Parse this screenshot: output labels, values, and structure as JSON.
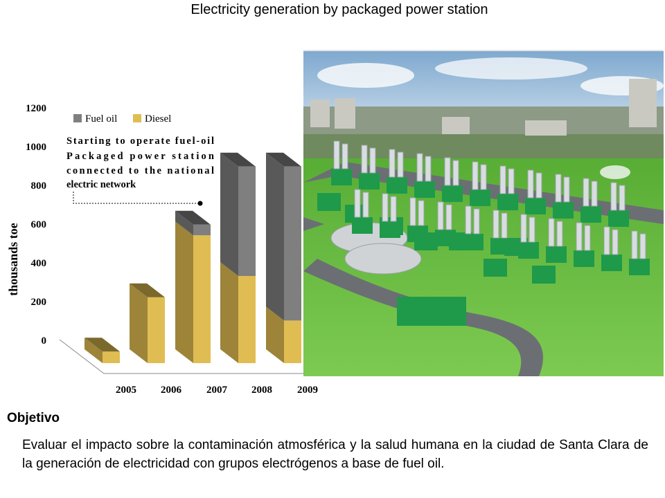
{
  "page": {
    "title": "Electricity generation by packaged power station"
  },
  "chart_data": {
    "type": "bar",
    "stacked": true,
    "three_d": true,
    "categories": [
      "2005",
      "2006",
      "2007",
      "2008",
      "2009"
    ],
    "series": [
      {
        "name": "Diesel",
        "values": [
          60,
          340,
          660,
          450,
          220
        ],
        "color": "#e0bd52"
      },
      {
        "name": "Fuel oil",
        "values": [
          0,
          0,
          55,
          565,
          795
        ],
        "color": "#7f7f7f"
      }
    ],
    "ylabel": "thousands  toe",
    "ylim": [
      0,
      1200
    ],
    "yticks": [
      0,
      200,
      400,
      600,
      800,
      1000,
      1200
    ],
    "legend_position": "top-left",
    "annotation": {
      "lines": [
        "Starting to operate fuel-oil",
        "Packaged power station",
        "connected to the national",
        "electric network"
      ],
      "points_to": {
        "category": "2007",
        "value": 700
      }
    }
  },
  "photo": {
    "icon": "power-plant-photo-icon",
    "sky_color": "#bfd7ea",
    "grass_color": "#6fc04a",
    "unit_color": "#1e9a4a"
  },
  "objective": {
    "heading": "Objetivo",
    "text": "Evaluar el impacto sobre la contaminación atmosférica y la salud humana en la ciudad de Santa Clara de la generación de electricidad con grupos electrógenos a base de fuel oil."
  }
}
